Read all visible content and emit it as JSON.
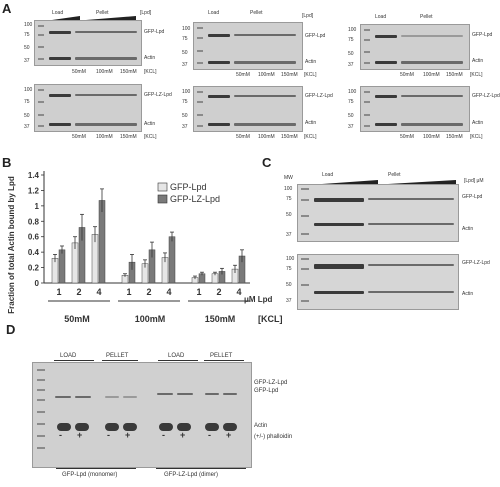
{
  "panels": {
    "A": "A",
    "B": "B",
    "C": "C",
    "D": "D"
  },
  "panelA": {
    "top_labels": {
      "load": "Load",
      "pellet": "Pellet",
      "lpd": "[Lpd]"
    },
    "mw_top": [
      "100",
      "75",
      "50",
      "37"
    ],
    "mw_bottom": [
      "100",
      "75",
      "50",
      "37"
    ],
    "band_gfp": "GFP-Lpd",
    "band_gfplz": "GFP-LZ-Lpd",
    "band_actin": "Actin",
    "kcl_label": "[KCL]",
    "kcl": [
      "50mM",
      "100mM",
      "150mM"
    ]
  },
  "panelB": {
    "ylabel": "Fraction of total Actin bound by Lpd",
    "legend": [
      "GFP-Lpd",
      "GFP-LZ-Lpd"
    ],
    "xunit": "μM Lpd",
    "groups": [
      "50mM",
      "100mM",
      "150mM"
    ],
    "kcl_label": "[KCL]"
  },
  "chart_data": {
    "type": "bar",
    "title": "",
    "ylabel": "Fraction of total Actin bound by Lpd",
    "xlabel": "μM Lpd",
    "ylim": [
      0,
      1.4
    ],
    "yticks": [
      "0",
      "0.2",
      "0.4",
      "0.6",
      "0.8",
      "1",
      "1.2",
      "1.4"
    ],
    "categories": [
      "1",
      "2",
      "4",
      "1",
      "2",
      "4",
      "1",
      "2",
      "4"
    ],
    "groups": [
      "50mM",
      "100mM",
      "150mM"
    ],
    "series": [
      {
        "name": "GFP-Lpd",
        "color": "#e6e6e6",
        "values": [
          0.32,
          0.52,
          0.63,
          0.1,
          0.25,
          0.33,
          0.07,
          0.12,
          0.18
        ],
        "errors": [
          0.05,
          0.08,
          0.1,
          0.02,
          0.05,
          0.06,
          0.02,
          0.02,
          0.05
        ]
      },
      {
        "name": "GFP-LZ-Lpd",
        "color": "#7a7a7a",
        "values": [
          0.43,
          0.72,
          1.07,
          0.27,
          0.43,
          0.6,
          0.12,
          0.15,
          0.35
        ],
        "errors": [
          0.05,
          0.17,
          0.15,
          0.1,
          0.1,
          0.06,
          0.02,
          0.04,
          0.08
        ]
      }
    ]
  },
  "panelC": {
    "mw_label": "MW",
    "load": "Load",
    "pellet": "Pellet",
    "lpd": "[Lpd] μM",
    "mw_top": [
      "100",
      "75",
      "50",
      "37"
    ],
    "mw_bottom": [
      "100",
      "75",
      "50",
      "37"
    ],
    "band_gfp": "GFP-Lpd",
    "band_gfplz": "GFP-LZ-Lpd",
    "band_actin": "Actin"
  },
  "panelD": {
    "headers": [
      "LOAD",
      "PELLET",
      "LOAD",
      "PELLET"
    ],
    "band_lz": "GFP-LZ-Lpd",
    "band_gfp": "GFP-Lpd",
    "band_actin": "Actin",
    "pm": [
      "-",
      "+",
      "-",
      "+",
      "-",
      "+",
      "-",
      "+"
    ],
    "phalloidin": "(+/-) phalloidin",
    "bottom": [
      "GFP-Lpd (monomer)",
      "GFP-LZ-Lpd (dimer)"
    ]
  }
}
